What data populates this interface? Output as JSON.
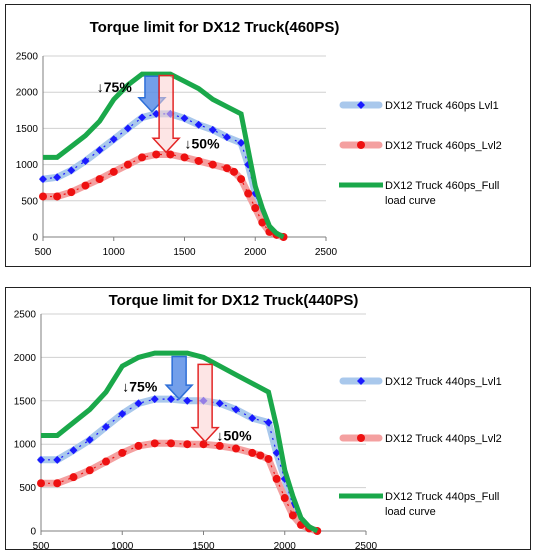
{
  "chart_data": [
    {
      "type": "line",
      "title": "Torque limit  for DX12 Truck(460PS)",
      "xlim": [
        500,
        2500
      ],
      "ylim": [
        0,
        2500
      ],
      "xticks": [
        500,
        1000,
        1500,
        2000,
        2500
      ],
      "yticks": [
        0,
        500,
        1000,
        1500,
        2000,
        2500
      ],
      "grid": "horizontal",
      "legend_position": "right",
      "series": [
        {
          "name": "DX12 Truck 460ps Lvl1",
          "color": "#1a1aff",
          "band_color": "#a9c8ec",
          "marker": "diamond",
          "x": [
            500,
            600,
            700,
            800,
            900,
            1000,
            1100,
            1200,
            1300,
            1400,
            1500,
            1600,
            1700,
            1800,
            1900,
            1950,
            2000,
            2050,
            2100,
            2150,
            2200
          ],
          "y": [
            800,
            825,
            920,
            1050,
            1200,
            1350,
            1500,
            1650,
            1700,
            1700,
            1640,
            1550,
            1480,
            1380,
            1300,
            1000,
            600,
            300,
            90,
            30,
            0
          ]
        },
        {
          "name": "DX12 Truck 460ps_Lvl2",
          "color": "#ee1111",
          "band_color": "#f4a0a0",
          "marker": "circle",
          "x": [
            500,
            600,
            700,
            800,
            900,
            1000,
            1100,
            1200,
            1300,
            1400,
            1500,
            1600,
            1700,
            1800,
            1850,
            1900,
            1950,
            2000,
            2050,
            2100,
            2150,
            2200
          ],
          "y": [
            560,
            560,
            620,
            710,
            800,
            900,
            1000,
            1100,
            1140,
            1140,
            1100,
            1050,
            1000,
            950,
            900,
            800,
            600,
            400,
            200,
            70,
            30,
            0
          ]
        },
        {
          "name": "DX12 Truck 460ps_Full load curve",
          "color": "#1aa84a",
          "x": [
            500,
            600,
            700,
            800,
            900,
            1000,
            1100,
            1200,
            1300,
            1400,
            1500,
            1600,
            1700,
            1800,
            1900,
            1950,
            2000,
            2050,
            2100,
            2150,
            2200
          ],
          "y": [
            1100,
            1100,
            1250,
            1400,
            1600,
            1900,
            2100,
            2250,
            2250,
            2250,
            2150,
            2050,
            1900,
            1800,
            1700,
            1200,
            700,
            400,
            150,
            50,
            0
          ]
        }
      ],
      "annotations": [
        {
          "text": "↓75%",
          "x": 880,
          "y": 2000
        },
        {
          "text": "↓50%",
          "x": 1500,
          "y": 1220
        }
      ],
      "arrows": [
        {
          "x": 1270,
          "y_from": 2220,
          "y_to": 1730,
          "color": "#2e6fd8"
        },
        {
          "x": 1370,
          "y_from": 2230,
          "y_to": 1170,
          "color": "#e32626"
        }
      ]
    },
    {
      "type": "line",
      "title": "Torque limit  for DX12 Truck(440PS)",
      "xlim": [
        500,
        2500
      ],
      "ylim": [
        0,
        2500
      ],
      "xticks": [
        500,
        1000,
        1500,
        2000,
        2500
      ],
      "yticks": [
        0,
        500,
        1000,
        1500,
        2000,
        2500
      ],
      "grid": "horizontal",
      "legend_position": "right",
      "series": [
        {
          "name": "DX12 Truck 440ps_Lvl1",
          "color": "#1a1aff",
          "band_color": "#a9c8ec",
          "marker": "diamond",
          "x": [
            500,
            600,
            700,
            800,
            900,
            1000,
            1100,
            1200,
            1300,
            1400,
            1500,
            1600,
            1700,
            1800,
            1900,
            1950,
            2000,
            2050,
            2100,
            2150,
            2200
          ],
          "y": [
            820,
            820,
            930,
            1050,
            1200,
            1350,
            1470,
            1520,
            1520,
            1500,
            1500,
            1470,
            1400,
            1300,
            1250,
            900,
            600,
            300,
            90,
            30,
            0
          ]
        },
        {
          "name": "DX12 Truck 440ps_Lvl2",
          "color": "#ee1111",
          "band_color": "#f4a0a0",
          "marker": "circle",
          "x": [
            500,
            600,
            700,
            800,
            900,
            1000,
            1100,
            1200,
            1300,
            1400,
            1500,
            1600,
            1700,
            1800,
            1850,
            1900,
            1950,
            2000,
            2050,
            2100,
            2150,
            2200
          ],
          "y": [
            550,
            550,
            620,
            700,
            800,
            900,
            980,
            1010,
            1010,
            1000,
            1000,
            980,
            950,
            900,
            870,
            830,
            600,
            380,
            180,
            70,
            30,
            0
          ]
        },
        {
          "name": "DX12 Truck 440ps_Full load curve",
          "color": "#1aa84a",
          "x": [
            500,
            600,
            700,
            800,
            900,
            1000,
            1100,
            1200,
            1300,
            1400,
            1500,
            1600,
            1700,
            1800,
            1900,
            1950,
            2000,
            2050,
            2100,
            2150,
            2200
          ],
          "y": [
            1100,
            1100,
            1250,
            1400,
            1600,
            1900,
            2000,
            2050,
            2050,
            2050,
            2000,
            1900,
            1800,
            1700,
            1600,
            1200,
            700,
            400,
            150,
            50,
            0
          ]
        }
      ],
      "annotations": [
        {
          "text": "↓75%",
          "x": 1000,
          "y": 1610
        },
        {
          "text": "↓50%",
          "x": 1580,
          "y": 1040
        }
      ],
      "arrows": [
        {
          "x": 1350,
          "y_from": 2010,
          "y_to": 1520,
          "color": "#2e6fd8"
        },
        {
          "x": 1510,
          "y_from": 1920,
          "y_to": 1030,
          "color": "#e32626"
        }
      ]
    }
  ]
}
